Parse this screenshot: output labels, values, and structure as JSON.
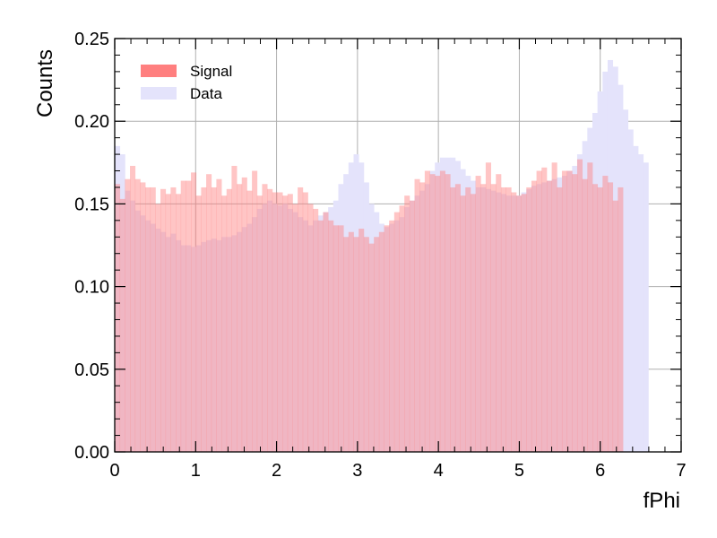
{
  "chart_data": {
    "type": "histogram",
    "title": "",
    "xlabel": "fPhi",
    "ylabel": "Counts",
    "xlim": [
      0,
      7
    ],
    "ylim": [
      0,
      0.25
    ],
    "xticks": [
      "0",
      "1",
      "2",
      "3",
      "4",
      "5",
      "6",
      "7"
    ],
    "yticks": [
      "0.00",
      "0.05",
      "0.10",
      "0.15",
      "0.20",
      "0.25"
    ],
    "grid": true,
    "legend_position": "top-left",
    "bin_start": 0,
    "bin_width": 0.0628,
    "series": [
      {
        "name": "Signal",
        "color": "#ff7f7f",
        "values": [
          0.162,
          0.153,
          0.165,
          0.173,
          0.165,
          0.163,
          0.16,
          0.16,
          0.15,
          0.159,
          0.156,
          0.16,
          0.156,
          0.164,
          0.164,
          0.169,
          0.155,
          0.16,
          0.168,
          0.16,
          0.165,
          0.155,
          0.159,
          0.173,
          0.162,
          0.166,
          0.158,
          0.17,
          0.155,
          0.162,
          0.159,
          0.157,
          0.157,
          0.155,
          0.156,
          0.15,
          0.16,
          0.157,
          0.15,
          0.147,
          0.14,
          0.145,
          0.14,
          0.137,
          0.137,
          0.13,
          0.133,
          0.13,
          0.135,
          0.13,
          0.126,
          0.13,
          0.133,
          0.137,
          0.14,
          0.145,
          0.149,
          0.155,
          0.152,
          0.165,
          0.163,
          0.17,
          0.168,
          0.167,
          0.17,
          0.168,
          0.16,
          0.162,
          0.155,
          0.16,
          0.156,
          0.167,
          0.162,
          0.175,
          0.162,
          0.168,
          0.16,
          0.16,
          0.157,
          0.155,
          0.156,
          0.16,
          0.164,
          0.17,
          0.172,
          0.164,
          0.175,
          0.16,
          0.17,
          0.17,
          0.168,
          0.177,
          0.165,
          0.175,
          0.162,
          0.16,
          0.167,
          0.163,
          0.152,
          0.16
        ]
      },
      {
        "name": "Data",
        "color": "#e4e3fb",
        "values": [
          0.185,
          0.18,
          0.158,
          0.152,
          0.146,
          0.143,
          0.14,
          0.138,
          0.135,
          0.133,
          0.13,
          0.132,
          0.128,
          0.125,
          0.125,
          0.124,
          0.125,
          0.127,
          0.128,
          0.129,
          0.128,
          0.13,
          0.13,
          0.131,
          0.133,
          0.136,
          0.138,
          0.142,
          0.147,
          0.15,
          0.152,
          0.15,
          0.149,
          0.15,
          0.147,
          0.145,
          0.142,
          0.14,
          0.137,
          0.14,
          0.143,
          0.145,
          0.148,
          0.152,
          0.162,
          0.168,
          0.175,
          0.18,
          0.175,
          0.163,
          0.15,
          0.145,
          0.138,
          0.136,
          0.138,
          0.14,
          0.142,
          0.148,
          0.152,
          0.155,
          0.158,
          0.162,
          0.17,
          0.175,
          0.178,
          0.178,
          0.178,
          0.176,
          0.171,
          0.167,
          0.164,
          0.16,
          0.16,
          0.159,
          0.158,
          0.157,
          0.156,
          0.155,
          0.155,
          0.155,
          0.157,
          0.159,
          0.161,
          0.162,
          0.163,
          0.164,
          0.165,
          0.166,
          0.167,
          0.17,
          0.173,
          0.18,
          0.188,
          0.196,
          0.205,
          0.218,
          0.23,
          0.237,
          0.233,
          0.222,
          0.207,
          0.195,
          0.185,
          0.18,
          0.175
        ]
      }
    ]
  }
}
